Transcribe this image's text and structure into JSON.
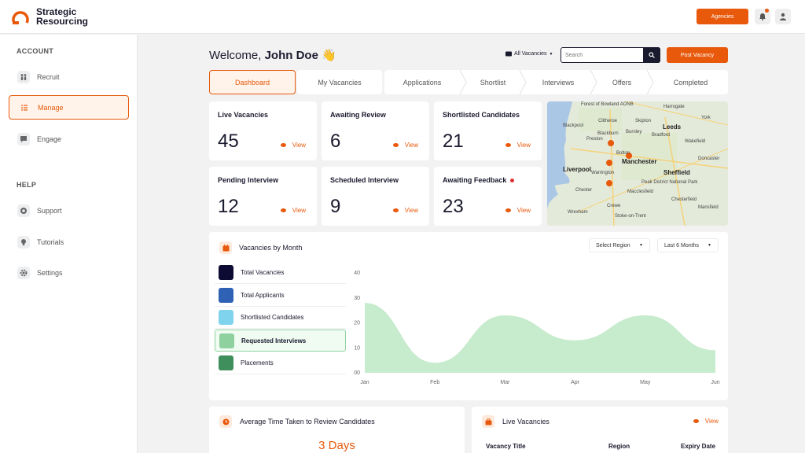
{
  "brand": {
    "name_line1": "Strategic",
    "name_line2": "Resourcing",
    "accent": "#e8590c",
    "dark": "#1a1a2e"
  },
  "header": {
    "agencies_label": "Agencies",
    "bell_icon": "bell-icon",
    "user_icon": "user-icon"
  },
  "sidebar": {
    "account_heading": "ACCOUNT",
    "help_heading": "HELP",
    "account_items": [
      {
        "label": "Recruit",
        "icon": "people-icon"
      },
      {
        "label": "Manage",
        "icon": "list-icon",
        "active": true
      },
      {
        "label": "Engage",
        "icon": "chat-icon"
      }
    ],
    "help_items": [
      {
        "label": "Support",
        "icon": "support-icon"
      },
      {
        "label": "Tutorials",
        "icon": "lightbulb-icon"
      },
      {
        "label": "Settings",
        "icon": "gear-icon"
      }
    ]
  },
  "main": {
    "welcome_prefix": "Welcome,",
    "user_name": "John Doe",
    "wave": "👋",
    "vacancy_filter": "All Vacancies",
    "search_placeholder": "Search",
    "post_vacancy_label": "Post Vacancy",
    "tabs": [
      "Dashboard",
      "My Vacancies"
    ],
    "pipeline": [
      "Applications",
      "Shortlist",
      "Interviews",
      "Offers",
      "Completed"
    ]
  },
  "stats": [
    {
      "title": "Live Vacancies",
      "value": "45",
      "view": "View"
    },
    {
      "title": "Awaiting Review",
      "value": "6",
      "view": "View"
    },
    {
      "title": "Shortlisted Candidates",
      "value": "21",
      "view": "View"
    },
    {
      "title": "Pending Interview",
      "value": "12",
      "view": "View"
    },
    {
      "title": "Scheduled Interview",
      "value": "9",
      "view": "View"
    },
    {
      "title": "Awaiting Feedback",
      "value": "23",
      "view": "View",
      "alert": true
    }
  ],
  "map": {
    "labels": [
      "Forest of Bowland AONB",
      "Harrogate",
      "York",
      "Blackpool",
      "Clitheroe",
      "Skipton",
      "Leeds",
      "Preston",
      "Burnley",
      "Bradford",
      "Blackburn",
      "Wakefield",
      "Bolton",
      "Manchester",
      "Liverpool",
      "Warrington",
      "Sheffield",
      "Peak District National Park",
      "Chester",
      "Doncaster",
      "Macclesfield",
      "Crewe",
      "Stoke-on-Trent",
      "Wrexham",
      "Chesterfield",
      "Mansfield"
    ]
  },
  "vacancies_chart": {
    "title": "Vacancies by Month",
    "region_select": "Select Region",
    "period_select": "Last 6 Months",
    "legend": [
      {
        "label": "Total Vacancies",
        "color": "#0d0b33"
      },
      {
        "label": "Total Applicants",
        "color": "#2f62b5"
      },
      {
        "label": "Shortlisted Candidates",
        "color": "#7fd3ec"
      },
      {
        "label": "Requested Interviews",
        "color": "#8fd19e",
        "active": true
      },
      {
        "label": "Placements",
        "color": "#3f8f5c"
      }
    ]
  },
  "chart_data": {
    "type": "area",
    "categories": [
      "Jan",
      "Feb",
      "Mar",
      "Apr",
      "May",
      "Jun"
    ],
    "series": [
      {
        "name": "Requested Interviews",
        "values": [
          28,
          4,
          23,
          13,
          23,
          9
        ]
      }
    ],
    "yticks": [
      "00",
      "10",
      "20",
      "30",
      "40"
    ],
    "ylim": [
      0,
      40
    ],
    "grid": false,
    "color": "#c7ebcd"
  },
  "bottom": {
    "review_title": "Average Time Taken to Review Candidates",
    "review_value": "3 Days",
    "live_title": "Live Vacancies",
    "live_view": "View",
    "columns": [
      "Vacancy Title",
      "Region",
      "Expiry Date"
    ]
  }
}
